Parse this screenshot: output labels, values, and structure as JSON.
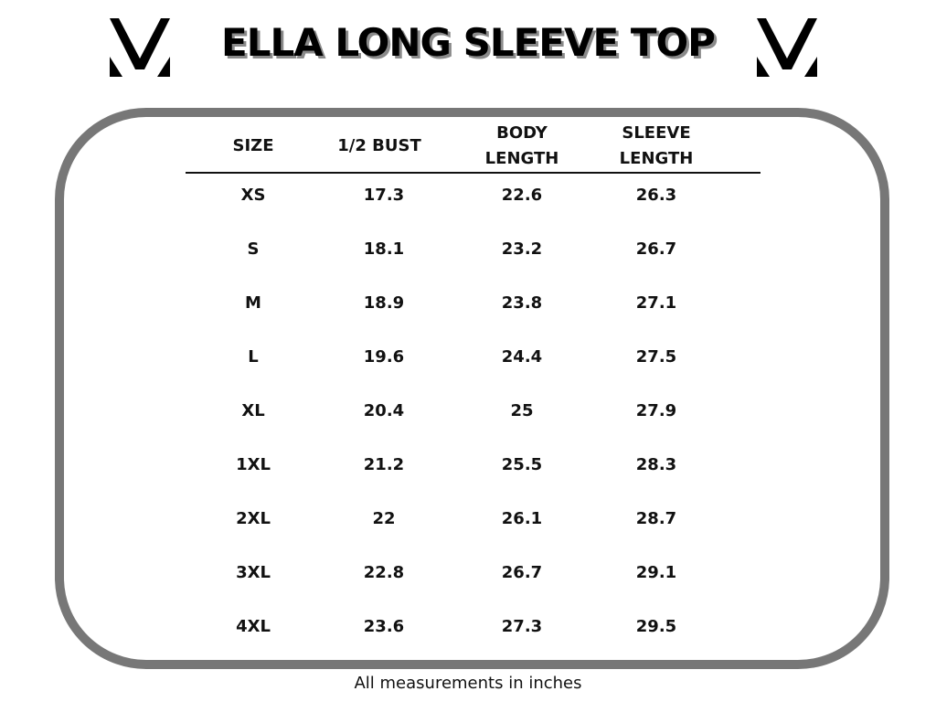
{
  "title": "ELLA LONG SLEEVE TOP",
  "table": {
    "headers": [
      "SIZE",
      "1/2 BUST",
      "BODY LENGTH",
      "SLEEVE LENGTH"
    ],
    "rows": [
      [
        "XS",
        17.3,
        22.6,
        26.3
      ],
      [
        "S",
        18.1,
        23.2,
        26.7
      ],
      [
        "M",
        18.9,
        23.8,
        27.1
      ],
      [
        "L",
        19.6,
        24.4,
        27.5
      ],
      [
        "XL",
        20.4,
        25,
        27.9
      ],
      [
        "1XL",
        21.2,
        25.5,
        28.3
      ],
      [
        "2XL",
        22,
        26.1,
        28.7
      ],
      [
        "3XL",
        22.8,
        26.7,
        29.1
      ],
      [
        "4XL",
        23.6,
        27.3,
        29.5
      ]
    ]
  },
  "note": "All measurements in inches"
}
